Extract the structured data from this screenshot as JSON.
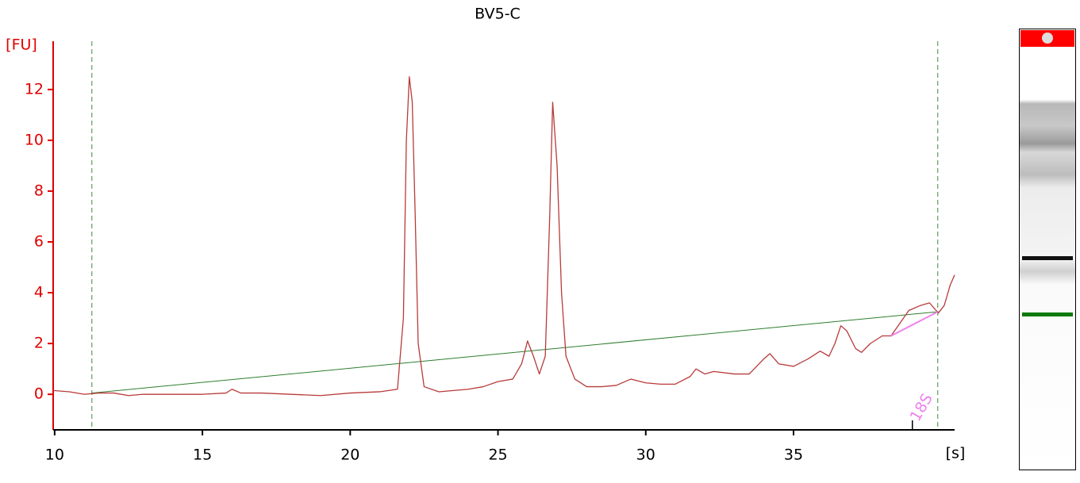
{
  "chart_data": {
    "type": "line",
    "title": "BV5-C",
    "y_label": "[FU]",
    "x_label": "[s]",
    "xlim": [
      9.95,
      40.45
    ],
    "ylim": [
      -1.4,
      13.9
    ],
    "xticks": [
      10,
      15,
      20,
      25,
      30,
      35
    ],
    "yticks": [
      0,
      2,
      4,
      6,
      8,
      10,
      12
    ],
    "grid": false,
    "series": [
      {
        "color": "#b83a3a",
        "x": [
          9.95,
          10.5,
          11,
          11.5,
          12,
          12.5,
          13,
          14,
          15,
          15.8,
          16,
          16.3,
          17,
          18,
          19,
          20,
          21,
          21.6,
          21.8,
          21.9,
          22.0,
          22.1,
          22.2,
          22.3,
          22.5,
          23,
          24,
          24.5,
          25,
          25.5,
          25.8,
          26.0,
          26.2,
          26.4,
          26.6,
          26.75,
          26.85,
          27.0,
          27.15,
          27.3,
          27.6,
          28,
          28.5,
          29,
          29.5,
          30,
          30.5,
          31,
          31.5,
          31.7,
          32,
          32.3,
          33,
          33.5,
          34,
          34.2,
          34.5,
          35,
          35.5,
          35.9,
          36.2,
          36.4,
          36.6,
          36.8,
          37.1,
          37.3,
          37.6,
          38,
          38.3,
          38.6,
          38.9,
          39.3,
          39.6,
          39.9,
          40.1,
          40.3,
          40.45
        ],
        "values": [
          0.15,
          0.1,
          0.0,
          0.05,
          0.05,
          -0.05,
          0.0,
          0.0,
          0.0,
          0.05,
          0.2,
          0.05,
          0.05,
          0.0,
          -0.05,
          0.05,
          0.1,
          0.2,
          3,
          10,
          12.5,
          11.5,
          7,
          2,
          0.3,
          0.1,
          0.2,
          0.3,
          0.5,
          0.6,
          1.2,
          2.1,
          1.5,
          0.8,
          1.5,
          7,
          11.5,
          9,
          4,
          1.5,
          0.6,
          0.3,
          0.3,
          0.35,
          0.6,
          0.45,
          0.4,
          0.4,
          0.7,
          1.0,
          0.8,
          0.9,
          0.8,
          0.8,
          1.4,
          1.6,
          1.2,
          1.1,
          1.4,
          1.7,
          1.5,
          2.0,
          2.7,
          2.5,
          1.8,
          1.65,
          2.0,
          2.3,
          2.3,
          2.8,
          3.3,
          3.5,
          3.6,
          3.2,
          3.5,
          4.3,
          4.7
        ]
      }
    ],
    "reference_lines": [
      {
        "x": 11.26,
        "color": "#3a8a3a"
      },
      {
        "x": 39.88,
        "color": "#3a8a3a"
      }
    ],
    "baseline": {
      "x": [
        11.26,
        39.88
      ],
      "y": [
        0.05,
        3.25
      ],
      "color": "#2e7d2e"
    },
    "peak_fit": {
      "x": [
        38.3,
        39.88
      ],
      "y": [
        2.3,
        3.25
      ],
      "color": "#ee82ee"
    },
    "markers": [
      {
        "label": "18S",
        "x": 39.02,
        "color": "#ee82ee"
      }
    ],
    "y_axis_color": "#e00000"
  }
}
